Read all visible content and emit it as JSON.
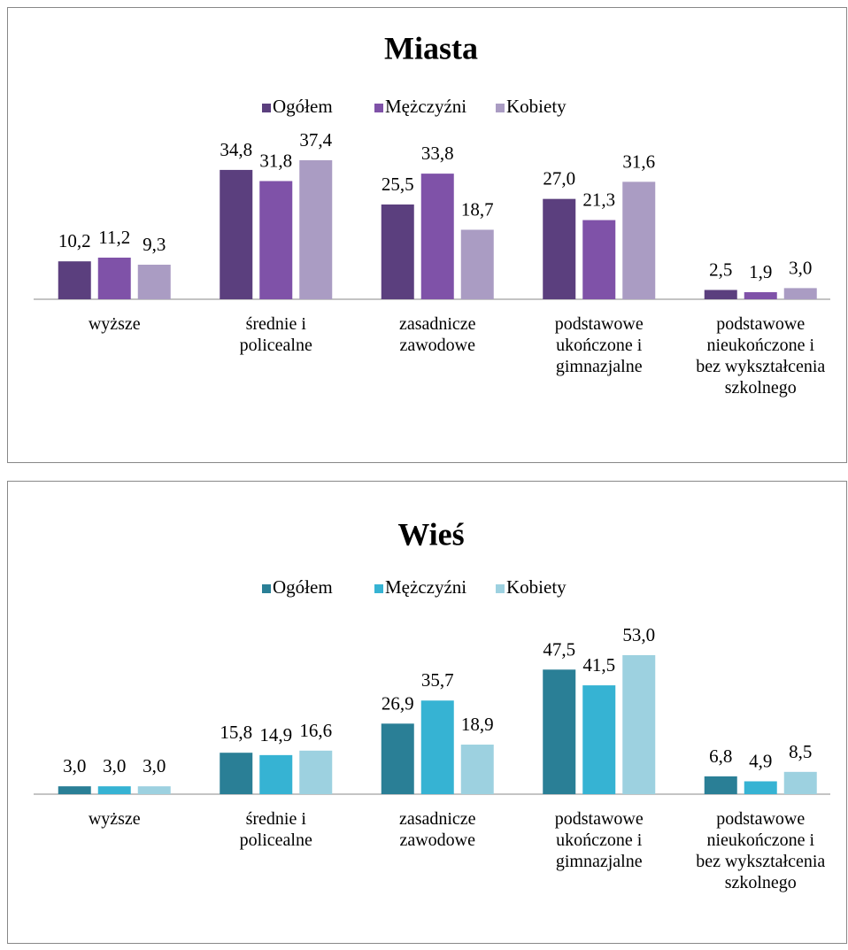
{
  "chart_data": [
    {
      "type": "bar",
      "title": "Miasta",
      "categories": [
        "wyższe",
        "średnie i policealne",
        "zasadnicze zawodowe",
        "podstawowe ukończone i gimnazjalne",
        "podstawowe nieukończone i bez wykształcenia szkolnego"
      ],
      "series": [
        {
          "name": "Ogółem",
          "color": "#5b3f7e",
          "values": [
            10.2,
            34.8,
            25.5,
            27.0,
            2.5
          ],
          "value_labels": [
            "10,2",
            "34,8",
            "25,5",
            "27,0",
            "2,5"
          ]
        },
        {
          "name": "Mężczyźni",
          "color": "#7f52a8",
          "values": [
            11.2,
            31.8,
            33.8,
            21.3,
            1.9
          ],
          "value_labels": [
            "11,2",
            "31,8",
            "33,8",
            "21,3",
            "1,9"
          ]
        },
        {
          "name": "Kobiety",
          "color": "#aa9cc3",
          "values": [
            9.3,
            37.4,
            18.7,
            31.6,
            3.0
          ],
          "value_labels": [
            "9,3",
            "37,4",
            "18,7",
            "31,6",
            "3,0"
          ]
        }
      ],
      "legend": "top"
    },
    {
      "type": "bar",
      "title": "Wieś",
      "categories": [
        "wyższe",
        "średnie i policealne",
        "zasadnicze zawodowe",
        "podstawowe ukończone i gimnazjalne",
        "podstawowe nieukończone i bez wykształcenia szkolnego"
      ],
      "series": [
        {
          "name": "Ogółem",
          "color": "#2a7f96",
          "values": [
            3.0,
            15.8,
            26.9,
            47.5,
            6.8
          ],
          "value_labels": [
            "3,0",
            "15,8",
            "26,9",
            "47,5",
            "6,8"
          ]
        },
        {
          "name": "Mężczyźni",
          "color": "#36b3d3",
          "values": [
            3.0,
            14.9,
            35.7,
            41.5,
            4.9
          ],
          "value_labels": [
            "3,0",
            "14,9",
            "35,7",
            "41,5",
            "4,9"
          ]
        },
        {
          "name": "Kobiety",
          "color": "#9dd1e0",
          "values": [
            3.0,
            16.6,
            18.9,
            53.0,
            8.5
          ],
          "value_labels": [
            "3,0",
            "16,6",
            "18,9",
            "53,0",
            "8,5"
          ]
        }
      ],
      "legend": "top"
    }
  ]
}
